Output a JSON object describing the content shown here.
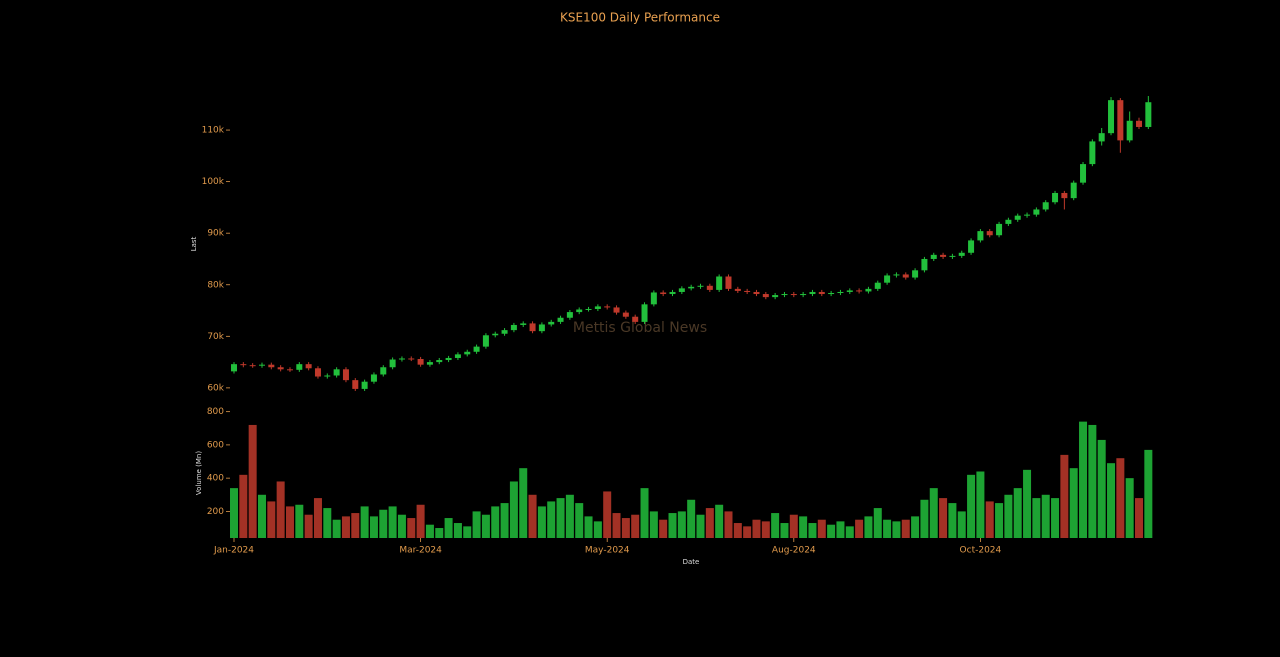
{
  "chart_data": {
    "type": "candlestick",
    "title": "KSE100 Daily Performance",
    "watermark": "Mettis Global News",
    "ylabel": "Last",
    "volume_ylabel": "Volume (Mn)",
    "xlabel": "Date",
    "up_color": "#22c03c",
    "down_color": "#c0392b",
    "categories": [
      "Jan-2024",
      null,
      null,
      null,
      null,
      null,
      null,
      null,
      null,
      null,
      null,
      null,
      null,
      null,
      null,
      null,
      null,
      null,
      null,
      null,
      "Mar-2024",
      null,
      null,
      null,
      null,
      null,
      null,
      null,
      null,
      null,
      null,
      null,
      null,
      null,
      null,
      null,
      null,
      null,
      null,
      null,
      "May-2024",
      null,
      null,
      null,
      null,
      null,
      null,
      null,
      null,
      null,
      null,
      null,
      null,
      null,
      null,
      null,
      null,
      null,
      null,
      null,
      "Aug-2024",
      null,
      null,
      null,
      null,
      null,
      null,
      null,
      null,
      null,
      null,
      null,
      null,
      null,
      null,
      null,
      null,
      null,
      null,
      null,
      "Oct-2024",
      null,
      null,
      null,
      null,
      null,
      null,
      null,
      null,
      null,
      null,
      null,
      null,
      null,
      null,
      null,
      null,
      null,
      null
    ],
    "open": [
      63200,
      64600,
      64400,
      64300,
      64500,
      64000,
      63600,
      63500,
      64600,
      63800,
      62200,
      62400,
      63600,
      61500,
      59800,
      61200,
      62600,
      64000,
      65500,
      65700,
      65600,
      64500,
      65000,
      65400,
      65800,
      66500,
      67000,
      68000,
      70200,
      70500,
      71200,
      72200,
      72500,
      71000,
      72300,
      72800,
      73600,
      74700,
      75200,
      75300,
      75800,
      75600,
      74600,
      73800,
      72800,
      76200,
      78500,
      78200,
      78600,
      79300,
      79600,
      79800,
      79000,
      81600,
      79200,
      78800,
      78600,
      78200,
      77600,
      78000,
      78200,
      78000,
      78200,
      78600,
      78200,
      78400,
      78600,
      78900,
      78700,
      79200,
      80400,
      81800,
      82000,
      81400,
      82800,
      85000,
      85800,
      85400,
      85600,
      86200,
      88600,
      90400,
      89600,
      91800,
      92600,
      93400,
      93600,
      94600,
      96000,
      97800,
      96800,
      99800,
      103400,
      107800,
      109400,
      115800,
      108000,
      111800,
      110600
    ],
    "high": [
      65000,
      65000,
      64800,
      64900,
      64900,
      64400,
      64000,
      65000,
      65000,
      64200,
      62800,
      64000,
      64000,
      61900,
      61600,
      63000,
      64400,
      65900,
      66100,
      66100,
      66000,
      65400,
      65800,
      66200,
      66900,
      67400,
      68400,
      70600,
      70900,
      71600,
      72600,
      72900,
      72900,
      72700,
      73200,
      74000,
      75100,
      75600,
      75700,
      76200,
      76200,
      76000,
      75000,
      74200,
      76600,
      78900,
      78900,
      79000,
      79700,
      80000,
      80200,
      80200,
      82000,
      82000,
      79600,
      79200,
      79000,
      78600,
      78400,
      78600,
      78600,
      78600,
      79000,
      79000,
      78800,
      79000,
      79300,
      79300,
      79600,
      80800,
      82200,
      82400,
      82400,
      83200,
      85400,
      86200,
      86200,
      86000,
      86600,
      89000,
      90800,
      90800,
      92200,
      93000,
      93800,
      94000,
      95000,
      96400,
      98200,
      98200,
      100200,
      103800,
      108200,
      110400,
      116400,
      116200,
      113600,
      112400,
      116600
    ],
    "low": [
      62800,
      64000,
      63900,
      63900,
      63600,
      63200,
      63100,
      63100,
      63400,
      61800,
      61800,
      62000,
      61100,
      59400,
      59400,
      60800,
      62200,
      63600,
      65100,
      65200,
      64100,
      64100,
      64600,
      65000,
      65400,
      66100,
      66600,
      67600,
      69800,
      70100,
      70800,
      71800,
      70600,
      70600,
      71900,
      72400,
      73200,
      74300,
      74800,
      74900,
      75200,
      74200,
      73400,
      72400,
      72400,
      75800,
      77800,
      77800,
      78200,
      78900,
      79200,
      78600,
      78600,
      78800,
      78400,
      78200,
      77800,
      77200,
      77200,
      77600,
      77600,
      77600,
      77800,
      77800,
      77800,
      78000,
      78200,
      78300,
      78300,
      78800,
      80000,
      81400,
      81000,
      81000,
      82400,
      84600,
      85000,
      85000,
      85200,
      85800,
      88200,
      89200,
      89200,
      91400,
      92200,
      93000,
      93200,
      94200,
      95600,
      94600,
      96400,
      99400,
      103000,
      107000,
      109000,
      105600,
      107600,
      110200,
      110200
    ],
    "close": [
      64600,
      64400,
      64300,
      64500,
      64000,
      63600,
      63500,
      64600,
      63800,
      62200,
      62400,
      63600,
      61500,
      59800,
      61200,
      62600,
      64000,
      65500,
      65700,
      65600,
      64500,
      65000,
      65400,
      65800,
      66500,
      67000,
      68000,
      70200,
      70500,
      71200,
      72200,
      72500,
      71000,
      72300,
      72800,
      73600,
      74700,
      75200,
      75300,
      75800,
      75600,
      74600,
      73800,
      72800,
      76200,
      78500,
      78200,
      78600,
      79300,
      79600,
      79800,
      79000,
      81600,
      79200,
      78800,
      78600,
      78200,
      77600,
      78000,
      78200,
      78000,
      78200,
      78600,
      78200,
      78400,
      78600,
      78900,
      78700,
      79200,
      80400,
      81800,
      82000,
      81400,
      82800,
      85000,
      85800,
      85400,
      85600,
      86200,
      88600,
      90400,
      89600,
      91800,
      92600,
      93400,
      93600,
      94600,
      96000,
      97800,
      96800,
      99800,
      103400,
      107800,
      109400,
      115800,
      108000,
      111800,
      110600,
      115400
    ],
    "volume": [
      340,
      420,
      720,
      300,
      260,
      380,
      230,
      240,
      180,
      280,
      220,
      150,
      170,
      190,
      230,
      170,
      210,
      230,
      180,
      160,
      240,
      120,
      100,
      160,
      130,
      110,
      200,
      180,
      230,
      250,
      380,
      460,
      300,
      230,
      260,
      280,
      300,
      250,
      170,
      140,
      320,
      190,
      160,
      180,
      340,
      200,
      150,
      190,
      200,
      270,
      180,
      220,
      240,
      200,
      130,
      110,
      150,
      140,
      190,
      130,
      180,
      170,
      130,
      150,
      120,
      140,
      110,
      150,
      170,
      220,
      150,
      140,
      150,
      170,
      270,
      340,
      280,
      250,
      200,
      420,
      440,
      260,
      250,
      300,
      340,
      450,
      280,
      300,
      280,
      540,
      460,
      740,
      720,
      630,
      490,
      520,
      400,
      280,
      570
    ],
    "ylim": [
      59200,
      116800
    ],
    "yticks": [
      {
        "value": 60000,
        "label": "60k"
      },
      {
        "value": 70000,
        "label": "70k"
      },
      {
        "value": 80000,
        "label": "80k"
      },
      {
        "value": 90000,
        "label": "90k"
      },
      {
        "value": 100000,
        "label": "100k"
      },
      {
        "value": 110000,
        "label": "110k"
      }
    ],
    "volume_ylim": [
      40,
      840
    ],
    "volume_yticks": [
      200,
      400,
      600,
      800
    ]
  }
}
